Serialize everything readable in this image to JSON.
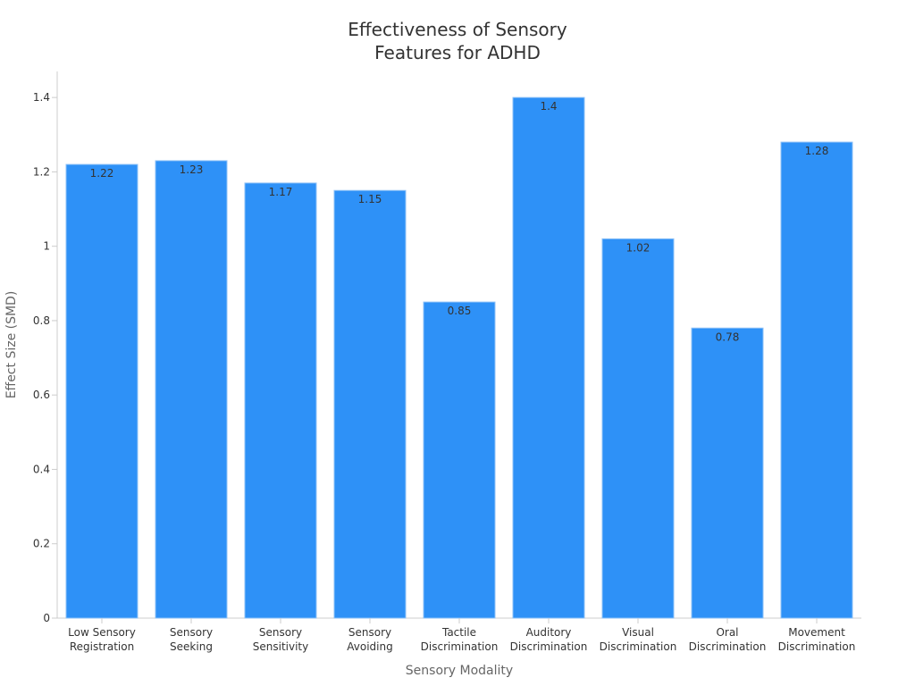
{
  "chart_data": {
    "type": "bar",
    "title_lines": [
      "Effectiveness of Sensory",
      "Features for ADHD"
    ],
    "xlabel": "Sensory Modality",
    "ylabel": "Effect Size (SMD)",
    "categories": [
      [
        "Low Sensory",
        "Registration"
      ],
      [
        "Sensory",
        "Seeking"
      ],
      [
        "Sensory",
        "Sensitivity"
      ],
      [
        "Sensory",
        "Avoiding"
      ],
      [
        "Tactile",
        "Discrimination"
      ],
      [
        "Auditory",
        "Discrimination"
      ],
      [
        "Visual",
        "Discrimination"
      ],
      [
        "Oral",
        "Discrimination"
      ],
      [
        "Movement",
        "Discrimination"
      ]
    ],
    "values": [
      1.22,
      1.23,
      1.17,
      1.15,
      0.85,
      1.4,
      1.02,
      0.78,
      1.28
    ],
    "value_labels": [
      "1.22",
      "1.23",
      "1.17",
      "1.15",
      "0.85",
      "1.4",
      "1.02",
      "0.78",
      "1.28"
    ],
    "ylim": [
      0,
      1.47
    ],
    "yticks": [
      0,
      0.2,
      0.4,
      0.6,
      0.8,
      1,
      1.2,
      1.4
    ],
    "ytick_labels": [
      "0",
      "0.2",
      "0.4",
      "0.6",
      "0.8",
      "1",
      "1.2",
      "1.4"
    ],
    "bar_color": "#2e91f7",
    "grid": false,
    "legend": "none"
  }
}
